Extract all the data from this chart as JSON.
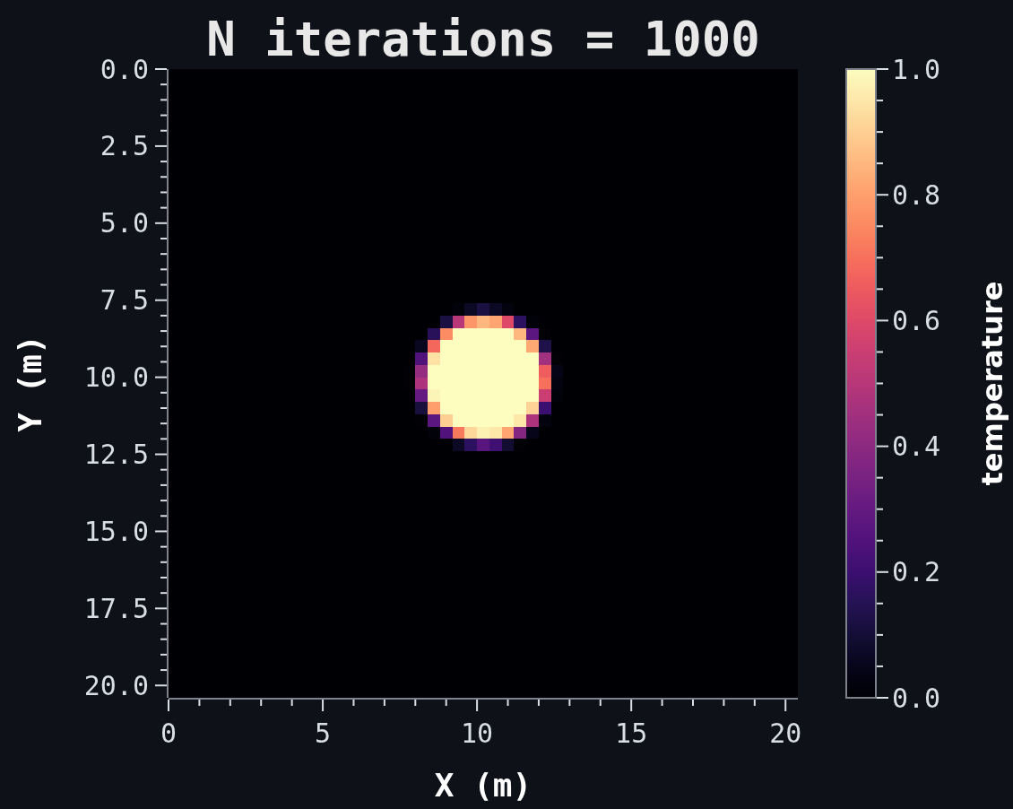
{
  "chart_data": {
    "type": "heatmap",
    "title": "N iterations = 1000",
    "xlabel": "X (m)",
    "ylabel": "Y (m)",
    "clabel": "temperature",
    "x": [
      0.2,
      0.6,
      1,
      1.4,
      1.8,
      2.2,
      2.6,
      3,
      3.4,
      3.8,
      4.2,
      4.6,
      5,
      5.4,
      5.8,
      6.2,
      6.6,
      7,
      7.4,
      7.8,
      8.2,
      8.6,
      9,
      9.4,
      9.8,
      10.2,
      10.6,
      11,
      11.4,
      11.8,
      12.2,
      12.6,
      13,
      13.4,
      13.8,
      14.2,
      14.6,
      15,
      15.4,
      15.8,
      16.2,
      16.6,
      17,
      17.4,
      17.8,
      18.2,
      18.6,
      19,
      19.4,
      19.8,
      20.2
    ],
    "xlim": [
      0,
      20.4
    ],
    "ylim": [
      20.4,
      0
    ],
    "xticks": [
      0,
      {
        "value": 1,
        "label": null
      },
      {
        "value": 2,
        "label": null
      },
      {
        "value": 3,
        "label": null
      },
      {
        "value": 4,
        "label": null
      },
      5,
      {
        "value": 6,
        "label": null
      },
      {
        "value": 7,
        "label": null
      },
      {
        "value": 8,
        "label": null
      },
      {
        "value": 9,
        "label": null
      },
      10,
      {
        "value": 11,
        "label": null
      },
      {
        "value": 12,
        "label": null
      },
      {
        "value": 13,
        "label": null
      },
      {
        "value": 14,
        "label": null
      },
      15,
      {
        "value": 16,
        "label": null
      },
      {
        "value": 17,
        "label": null
      },
      {
        "value": 18,
        "label": null
      },
      {
        "value": 19,
        "label": null
      },
      20
    ],
    "yticks": [
      {
        "value": 0,
        "label": "0.0"
      },
      {
        "value": 0.5,
        "label": null
      },
      {
        "value": 1,
        "label": null
      },
      {
        "value": 1.5,
        "label": null
      },
      {
        "value": 2,
        "label": null
      },
      {
        "value": 2.5,
        "label": "2.5"
      },
      {
        "value": 3,
        "label": null
      },
      {
        "value": 3.5,
        "label": null
      },
      {
        "value": 4,
        "label": null
      },
      {
        "value": 4.5,
        "label": null
      },
      {
        "value": 5,
        "label": "5.0"
      },
      {
        "value": 5.5,
        "label": null
      },
      {
        "value": 6,
        "label": null
      },
      {
        "value": 6.5,
        "label": null
      },
      {
        "value": 7,
        "label": null
      },
      {
        "value": 7.5,
        "label": "7.5"
      },
      {
        "value": 8,
        "label": null
      },
      {
        "value": 8.5,
        "label": null
      },
      {
        "value": 9,
        "label": null
      },
      {
        "value": 9.5,
        "label": null
      },
      {
        "value": 10,
        "label": "10.0"
      },
      {
        "value": 10.5,
        "label": null
      },
      {
        "value": 11,
        "label": null
      },
      {
        "value": 11.5,
        "label": null
      },
      {
        "value": 12,
        "label": null
      },
      {
        "value": 12.5,
        "label": "12.5"
      },
      {
        "value": 13,
        "label": null
      },
      {
        "value": 13.5,
        "label": null
      },
      {
        "value": 14,
        "label": null
      },
      {
        "value": 14.5,
        "label": null
      },
      {
        "value": 15,
        "label": "15.0"
      },
      {
        "value": 15.5,
        "label": null
      },
      {
        "value": 16,
        "label": null
      },
      {
        "value": 16.5,
        "label": null
      },
      {
        "value": 17,
        "label": null
      },
      {
        "value": 17.5,
        "label": "17.5"
      },
      {
        "value": 18,
        "label": null
      },
      {
        "value": 18.5,
        "label": null
      },
      {
        "value": 19,
        "label": null
      },
      {
        "value": 19.5,
        "label": null
      },
      {
        "value": 20,
        "label": "20.0"
      }
    ],
    "clim": [
      0,
      1
    ],
    "cticks": [
      {
        "value": 0,
        "label": "0.0"
      },
      {
        "value": 0.05,
        "label": null
      },
      {
        "value": 0.1,
        "label": null
      },
      {
        "value": 0.15,
        "label": null
      },
      {
        "value": 0.2,
        "label": "0.2"
      },
      {
        "value": 0.25,
        "label": null
      },
      {
        "value": 0.3,
        "label": null
      },
      {
        "value": 0.35,
        "label": null
      },
      {
        "value": 0.4,
        "label": "0.4"
      },
      {
        "value": 0.45,
        "label": null
      },
      {
        "value": 0.5,
        "label": null
      },
      {
        "value": 0.55,
        "label": null
      },
      {
        "value": 0.6,
        "label": "0.6"
      },
      {
        "value": 0.65,
        "label": null
      },
      {
        "value": 0.7,
        "label": null
      },
      {
        "value": 0.75,
        "label": null
      },
      {
        "value": 0.8,
        "label": "0.8"
      },
      {
        "value": 0.85,
        "label": null
      },
      {
        "value": 0.9,
        "label": null
      },
      {
        "value": 0.95,
        "label": null
      },
      {
        "value": 1,
        "label": "1.0"
      }
    ],
    "cells": [
      [
        0,
        0,
        0,
        0,
        0,
        0,
        0,
        0,
        0,
        0,
        0,
        0,
        0,
        0,
        0,
        0,
        0,
        0,
        0,
        0,
        0,
        0,
        0,
        0,
        0,
        0,
        0,
        0,
        0,
        0,
        0,
        0,
        0,
        0,
        0,
        0,
        0,
        0,
        0,
        0,
        0,
        0,
        0,
        0,
        0,
        0,
        0,
        0,
        0,
        0,
        0
      ],
      [
        0,
        0,
        0,
        0,
        0,
        0,
        0,
        0,
        0,
        0,
        0,
        0,
        0,
        0,
        0,
        0,
        0,
        0,
        0,
        0,
        0,
        0,
        0,
        0,
        0,
        0,
        0,
        0,
        0,
        0,
        0,
        0,
        0,
        0,
        0,
        0,
        0,
        0,
        0,
        0,
        0,
        0,
        0,
        0,
        0,
        0,
        0,
        0,
        0,
        0,
        0
      ],
      [
        0,
        0,
        0,
        0,
        0,
        0,
        0,
        0,
        0,
        0,
        0,
        0,
        0,
        0,
        0,
        0,
        0,
        0,
        0,
        0,
        0,
        0,
        0,
        0,
        0,
        0,
        0,
        0,
        0,
        0,
        0,
        0,
        0,
        0,
        0,
        0,
        0,
        0,
        0,
        0,
        0,
        0,
        0,
        0,
        0,
        0,
        0,
        0,
        0,
        0,
        0
      ],
      [
        0,
        0,
        0,
        0,
        0,
        0,
        0,
        0,
        0,
        0,
        0,
        0,
        0,
        0,
        0,
        0,
        0,
        0,
        0,
        0,
        0,
        0,
        0,
        0,
        0,
        0,
        0,
        0,
        0,
        0,
        0,
        0,
        0,
        0,
        0,
        0,
        0,
        0,
        0,
        0,
        0,
        0,
        0,
        0,
        0,
        0,
        0,
        0,
        0,
        0,
        0
      ],
      [
        0,
        0,
        0,
        0,
        0,
        0,
        0,
        0,
        0,
        0,
        0,
        0,
        0,
        0,
        0,
        0,
        0,
        0,
        0,
        0,
        0,
        0,
        0,
        0,
        0,
        0,
        0,
        0,
        0,
        0,
        0,
        0,
        0,
        0,
        0,
        0,
        0,
        0,
        0,
        0,
        0,
        0,
        0,
        0,
        0,
        0,
        0,
        0,
        0,
        0,
        0
      ],
      [
        0,
        0,
        0,
        0,
        0,
        0,
        0,
        0,
        0,
        0,
        0,
        0,
        0,
        0,
        0,
        0,
        0,
        0,
        0,
        0,
        0,
        0,
        0,
        0,
        0,
        0,
        0,
        0,
        0,
        0,
        0,
        0,
        0,
        0,
        0,
        0,
        0,
        0,
        0,
        0,
        0,
        0,
        0,
        0,
        0,
        0,
        0,
        0,
        0,
        0,
        0
      ],
      [
        0,
        0,
        0,
        0,
        0,
        0,
        0,
        0,
        0,
        0,
        0,
        0,
        0,
        0,
        0,
        0,
        0,
        0,
        0,
        0,
        0,
        0,
        0,
        0,
        0,
        0,
        0,
        0,
        0,
        0,
        0,
        0,
        0,
        0,
        0,
        0,
        0,
        0,
        0,
        0,
        0,
        0,
        0,
        0,
        0,
        0,
        0,
        0,
        0,
        0,
        0
      ],
      [
        0,
        0,
        0,
        0,
        0,
        0,
        0,
        0,
        0,
        0,
        0,
        0,
        0,
        0,
        0,
        0,
        0,
        0,
        0,
        0,
        0,
        0,
        0,
        0,
        0,
        0,
        0,
        0,
        0,
        0,
        0,
        0,
        0,
        0,
        0,
        0,
        0,
        0,
        0,
        0,
        0,
        0,
        0,
        0,
        0,
        0,
        0,
        0,
        0,
        0,
        0
      ],
      [
        0,
        0,
        0,
        0,
        0,
        0,
        0,
        0,
        0,
        0,
        0,
        0,
        0,
        0,
        0,
        0,
        0,
        0,
        0,
        0,
        0,
        0,
        0,
        0,
        0,
        0,
        0,
        0,
        0,
        0,
        0,
        0,
        0,
        0,
        0,
        0,
        0,
        0,
        0,
        0,
        0,
        0,
        0,
        0,
        0,
        0,
        0,
        0,
        0,
        0,
        0
      ],
      [
        0,
        0,
        0,
        0,
        0,
        0,
        0,
        0,
        0,
        0,
        0,
        0,
        0,
        0,
        0,
        0,
        0,
        0,
        0,
        0,
        0,
        0,
        0,
        0,
        0,
        0,
        0,
        0,
        0,
        0,
        0,
        0,
        0,
        0,
        0,
        0,
        0,
        0,
        0,
        0,
        0,
        0,
        0,
        0,
        0,
        0,
        0,
        0,
        0,
        0,
        0
      ],
      [
        0,
        0,
        0,
        0,
        0,
        0,
        0,
        0,
        0,
        0,
        0,
        0,
        0,
        0,
        0,
        0,
        0,
        0,
        0,
        0,
        0,
        0,
        0,
        0,
        0,
        0,
        0,
        0,
        0,
        0,
        0,
        0,
        0,
        0,
        0,
        0,
        0,
        0,
        0,
        0,
        0,
        0,
        0,
        0,
        0,
        0,
        0,
        0,
        0,
        0,
        0
      ],
      [
        0,
        0,
        0,
        0,
        0,
        0,
        0,
        0,
        0,
        0,
        0,
        0,
        0,
        0,
        0,
        0,
        0,
        0,
        0,
        0,
        0,
        0,
        0,
        0,
        0,
        0,
        0,
        0,
        0,
        0,
        0,
        0,
        0,
        0,
        0,
        0,
        0,
        0,
        0,
        0,
        0,
        0,
        0,
        0,
        0,
        0,
        0,
        0,
        0,
        0,
        0
      ],
      [
        0,
        0,
        0,
        0,
        0,
        0,
        0,
        0,
        0,
        0,
        0,
        0,
        0,
        0,
        0,
        0,
        0,
        0,
        0,
        0,
        0,
        0,
        0,
        0,
        0,
        0,
        0,
        0,
        0,
        0,
        0,
        0,
        0,
        0,
        0,
        0,
        0,
        0,
        0,
        0,
        0,
        0,
        0,
        0,
        0,
        0,
        0,
        0,
        0,
        0,
        0
      ],
      [
        0,
        0,
        0,
        0,
        0,
        0,
        0,
        0,
        0,
        0,
        0,
        0,
        0,
        0,
        0,
        0,
        0,
        0,
        0,
        0,
        0,
        0,
        0,
        0,
        0,
        0,
        0,
        0,
        0,
        0,
        0,
        0,
        0,
        0,
        0,
        0,
        0,
        0,
        0,
        0,
        0,
        0,
        0,
        0,
        0,
        0,
        0,
        0,
        0,
        0,
        0
      ],
      [
        0,
        0,
        0,
        0,
        0,
        0,
        0,
        0,
        0,
        0,
        0,
        0,
        0,
        0,
        0,
        0,
        0,
        0,
        0,
        0,
        0,
        0,
        0,
        0,
        0,
        0,
        0,
        0,
        0,
        0,
        0,
        0,
        0,
        0,
        0,
        0,
        0,
        0,
        0,
        0,
        0,
        0,
        0,
        0,
        0,
        0,
        0,
        0,
        0,
        0,
        0
      ],
      [
        0,
        0,
        0,
        0,
        0,
        0,
        0,
        0,
        0,
        0,
        0,
        0,
        0,
        0,
        0,
        0,
        0,
        0,
        0,
        0,
        0,
        0,
        0,
        0,
        0,
        0,
        0,
        0,
        0,
        0,
        0,
        0,
        0,
        0,
        0,
        0,
        0,
        0,
        0,
        0,
        0,
        0,
        0,
        0,
        0,
        0,
        0,
        0,
        0,
        0,
        0
      ],
      [
        0,
        0,
        0,
        0,
        0,
        0,
        0,
        0,
        0,
        0,
        0,
        0,
        0,
        0,
        0,
        0,
        0,
        0,
        0,
        0,
        0,
        0,
        0,
        0,
        0,
        0,
        0,
        0,
        0,
        0,
        0,
        0,
        0,
        0,
        0,
        0,
        0,
        0,
        0,
        0,
        0,
        0,
        0,
        0,
        0,
        0,
        0,
        0,
        0,
        0,
        0
      ],
      [
        0,
        0,
        0,
        0,
        0,
        0,
        0,
        0,
        0,
        0,
        0,
        0,
        0,
        0,
        0,
        0,
        0,
        0,
        0,
        0,
        0,
        0,
        0,
        0,
        0,
        0,
        0,
        0,
        0,
        0,
        0,
        0,
        0,
        0,
        0,
        0,
        0,
        0,
        0,
        0,
        0,
        0,
        0,
        0,
        0,
        0,
        0,
        0,
        0,
        0,
        0
      ],
      [
        0,
        0,
        0,
        0,
        0,
        0,
        0,
        0,
        0,
        0,
        0,
        0,
        0,
        0,
        0,
        0,
        0,
        0,
        0,
        0,
        0,
        0,
        0,
        0,
        0,
        0,
        0,
        0,
        0,
        0,
        0,
        0,
        0,
        0,
        0,
        0,
        0,
        0,
        0,
        0,
        0,
        0,
        0,
        0,
        0,
        0,
        0,
        0,
        0,
        0,
        0
      ],
      [
        0,
        0,
        0,
        0,
        0,
        0,
        0,
        0,
        0,
        0,
        0,
        0,
        0,
        0,
        0,
        0,
        0,
        0,
        0,
        0,
        0,
        0,
        0,
        0.02,
        0.07,
        0.12,
        0.07,
        0.03,
        0,
        0,
        0,
        0,
        0,
        0,
        0,
        0,
        0,
        0,
        0,
        0,
        0,
        0,
        0,
        0,
        0,
        0,
        0,
        0,
        0,
        0,
        0
      ],
      [
        0,
        0,
        0,
        0,
        0,
        0,
        0,
        0,
        0,
        0,
        0,
        0,
        0,
        0,
        0,
        0,
        0,
        0,
        0,
        0,
        0,
        0,
        0.12,
        0.5,
        0.78,
        0.85,
        0.81,
        0.6,
        0.17,
        0.02,
        0,
        0,
        0,
        0,
        0,
        0,
        0,
        0,
        0,
        0,
        0,
        0,
        0,
        0,
        0,
        0,
        0,
        0,
        0,
        0,
        0
      ],
      [
        0,
        0,
        0,
        0,
        0,
        0,
        0,
        0,
        0,
        0,
        0,
        0,
        0,
        0,
        0,
        0,
        0,
        0,
        0,
        0,
        0,
        0.16,
        0.76,
        1,
        1,
        1,
        1,
        1,
        0.85,
        0.28,
        0.01,
        0,
        0,
        0,
        0,
        0,
        0,
        0,
        0,
        0,
        0,
        0,
        0,
        0,
        0,
        0,
        0,
        0,
        0,
        0,
        0
      ],
      [
        0,
        0,
        0,
        0,
        0,
        0,
        0,
        0,
        0,
        0,
        0,
        0,
        0,
        0,
        0,
        0,
        0,
        0,
        0,
        0,
        0.06,
        0.68,
        1,
        1,
        1,
        1,
        1,
        1,
        1,
        0.82,
        0.13,
        0,
        0,
        0,
        0,
        0,
        0,
        0,
        0,
        0,
        0,
        0,
        0,
        0,
        0,
        0,
        0,
        0,
        0,
        0,
        0
      ],
      [
        0,
        0,
        0,
        0,
        0,
        0,
        0,
        0,
        0,
        0,
        0,
        0,
        0,
        0,
        0,
        0,
        0,
        0,
        0,
        0,
        0.25,
        0.94,
        1,
        1,
        1,
        1,
        1,
        1,
        1,
        1,
        0.45,
        0.01,
        0,
        0,
        0,
        0,
        0,
        0,
        0,
        0,
        0,
        0,
        0,
        0,
        0,
        0,
        0,
        0,
        0,
        0,
        0
      ],
      [
        0,
        0,
        0,
        0,
        0,
        0,
        0,
        0,
        0,
        0,
        0,
        0,
        0,
        0,
        0,
        0,
        0,
        0,
        0,
        0.01,
        0.42,
        1,
        1,
        1,
        1,
        1,
        1,
        1,
        1,
        1,
        0.66,
        0.04,
        0,
        0,
        0,
        0,
        0,
        0,
        0,
        0,
        0,
        0,
        0,
        0,
        0,
        0,
        0,
        0,
        0,
        0,
        0
      ],
      [
        0,
        0,
        0,
        0,
        0,
        0,
        0,
        0,
        0,
        0,
        0,
        0,
        0,
        0,
        0,
        0,
        0,
        0,
        0,
        0.01,
        0.48,
        1,
        1,
        1,
        1,
        1,
        1,
        1,
        1,
        1,
        0.7,
        0.03,
        0,
        0,
        0,
        0,
        0,
        0,
        0,
        0,
        0,
        0,
        0,
        0,
        0,
        0,
        0,
        0,
        0,
        0,
        0
      ],
      [
        0,
        0,
        0,
        0,
        0,
        0,
        0,
        0,
        0,
        0,
        0,
        0,
        0,
        0,
        0,
        0,
        0,
        0,
        0,
        0,
        0.3,
        0.98,
        1,
        1,
        1,
        1,
        1,
        1,
        1,
        1,
        0.55,
        0.02,
        0,
        0,
        0,
        0,
        0,
        0,
        0,
        0,
        0,
        0,
        0,
        0,
        0,
        0,
        0,
        0,
        0,
        0,
        0
      ],
      [
        0,
        0,
        0,
        0,
        0,
        0,
        0,
        0,
        0,
        0,
        0,
        0,
        0,
        0,
        0,
        0,
        0,
        0,
        0,
        0,
        0.11,
        0.8,
        1,
        1,
        1,
        1,
        1,
        1,
        1,
        0.91,
        0.2,
        0,
        0,
        0,
        0,
        0,
        0,
        0,
        0,
        0,
        0,
        0,
        0,
        0,
        0,
        0,
        0,
        0,
        0,
        0,
        0
      ],
      [
        0,
        0,
        0,
        0,
        0,
        0,
        0,
        0,
        0,
        0,
        0,
        0,
        0,
        0,
        0,
        0,
        0,
        0,
        0,
        0,
        0.01,
        0.28,
        0.9,
        1,
        1,
        1,
        1,
        1,
        0.95,
        0.48,
        0.03,
        0,
        0,
        0,
        0,
        0,
        0,
        0,
        0,
        0,
        0,
        0,
        0,
        0,
        0,
        0,
        0,
        0,
        0,
        0,
        0
      ],
      [
        0,
        0,
        0,
        0,
        0,
        0,
        0,
        0,
        0,
        0,
        0,
        0,
        0,
        0,
        0,
        0,
        0,
        0,
        0,
        0,
        0,
        0.02,
        0.25,
        0.72,
        0.92,
        0.97,
        0.95,
        0.81,
        0.38,
        0.05,
        0,
        0,
        0,
        0,
        0,
        0,
        0,
        0,
        0,
        0,
        0,
        0,
        0,
        0,
        0,
        0,
        0,
        0,
        0,
        0,
        0
      ],
      [
        0,
        0,
        0,
        0,
        0,
        0,
        0,
        0,
        0,
        0,
        0,
        0,
        0,
        0,
        0,
        0,
        0,
        0,
        0,
        0,
        0,
        0,
        0,
        0.07,
        0.17,
        0.27,
        0.21,
        0.09,
        0.01,
        0,
        0,
        0,
        0,
        0,
        0,
        0,
        0,
        0,
        0,
        0,
        0,
        0,
        0,
        0,
        0,
        0,
        0,
        0,
        0,
        0,
        0
      ],
      [
        0,
        0,
        0,
        0,
        0,
        0,
        0,
        0,
        0,
        0,
        0,
        0,
        0,
        0,
        0,
        0,
        0,
        0,
        0,
        0,
        0,
        0,
        0,
        0,
        0,
        0,
        0,
        0,
        0,
        0,
        0,
        0,
        0,
        0,
        0,
        0,
        0,
        0,
        0,
        0,
        0,
        0,
        0,
        0,
        0,
        0,
        0,
        0,
        0,
        0,
        0
      ],
      [
        0,
        0,
        0,
        0,
        0,
        0,
        0,
        0,
        0,
        0,
        0,
        0,
        0,
        0,
        0,
        0,
        0,
        0,
        0,
        0,
        0,
        0,
        0,
        0,
        0,
        0,
        0,
        0,
        0,
        0,
        0,
        0,
        0,
        0,
        0,
        0,
        0,
        0,
        0,
        0,
        0,
        0,
        0,
        0,
        0,
        0,
        0,
        0,
        0,
        0,
        0
      ],
      [
        0,
        0,
        0,
        0,
        0,
        0,
        0,
        0,
        0,
        0,
        0,
        0,
        0,
        0,
        0,
        0,
        0,
        0,
        0,
        0,
        0,
        0,
        0,
        0,
        0,
        0,
        0,
        0,
        0,
        0,
        0,
        0,
        0,
        0,
        0,
        0,
        0,
        0,
        0,
        0,
        0,
        0,
        0,
        0,
        0,
        0,
        0,
        0,
        0,
        0,
        0
      ],
      [
        0,
        0,
        0,
        0,
        0,
        0,
        0,
        0,
        0,
        0,
        0,
        0,
        0,
        0,
        0,
        0,
        0,
        0,
        0,
        0,
        0,
        0,
        0,
        0,
        0,
        0,
        0,
        0,
        0,
        0,
        0,
        0,
        0,
        0,
        0,
        0,
        0,
        0,
        0,
        0,
        0,
        0,
        0,
        0,
        0,
        0,
        0,
        0,
        0,
        0,
        0
      ],
      [
        0,
        0,
        0,
        0,
        0,
        0,
        0,
        0,
        0,
        0,
        0,
        0,
        0,
        0,
        0,
        0,
        0,
        0,
        0,
        0,
        0,
        0,
        0,
        0,
        0,
        0,
        0,
        0,
        0,
        0,
        0,
        0,
        0,
        0,
        0,
        0,
        0,
        0,
        0,
        0,
        0,
        0,
        0,
        0,
        0,
        0,
        0,
        0,
        0,
        0,
        0
      ],
      [
        0,
        0,
        0,
        0,
        0,
        0,
        0,
        0,
        0,
        0,
        0,
        0,
        0,
        0,
        0,
        0,
        0,
        0,
        0,
        0,
        0,
        0,
        0,
        0,
        0,
        0,
        0,
        0,
        0,
        0,
        0,
        0,
        0,
        0,
        0,
        0,
        0,
        0,
        0,
        0,
        0,
        0,
        0,
        0,
        0,
        0,
        0,
        0,
        0,
        0,
        0
      ],
      [
        0,
        0,
        0,
        0,
        0,
        0,
        0,
        0,
        0,
        0,
        0,
        0,
        0,
        0,
        0,
        0,
        0,
        0,
        0,
        0,
        0,
        0,
        0,
        0,
        0,
        0,
        0,
        0,
        0,
        0,
        0,
        0,
        0,
        0,
        0,
        0,
        0,
        0,
        0,
        0,
        0,
        0,
        0,
        0,
        0,
        0,
        0,
        0,
        0,
        0,
        0
      ],
      [
        0,
        0,
        0,
        0,
        0,
        0,
        0,
        0,
        0,
        0,
        0,
        0,
        0,
        0,
        0,
        0,
        0,
        0,
        0,
        0,
        0,
        0,
        0,
        0,
        0,
        0,
        0,
        0,
        0,
        0,
        0,
        0,
        0,
        0,
        0,
        0,
        0,
        0,
        0,
        0,
        0,
        0,
        0,
        0,
        0,
        0,
        0,
        0,
        0,
        0,
        0
      ],
      [
        0,
        0,
        0,
        0,
        0,
        0,
        0,
        0,
        0,
        0,
        0,
        0,
        0,
        0,
        0,
        0,
        0,
        0,
        0,
        0,
        0,
        0,
        0,
        0,
        0,
        0,
        0,
        0,
        0,
        0,
        0,
        0,
        0,
        0,
        0,
        0,
        0,
        0,
        0,
        0,
        0,
        0,
        0,
        0,
        0,
        0,
        0,
        0,
        0,
        0,
        0
      ],
      [
        0,
        0,
        0,
        0,
        0,
        0,
        0,
        0,
        0,
        0,
        0,
        0,
        0,
        0,
        0,
        0,
        0,
        0,
        0,
        0,
        0,
        0,
        0,
        0,
        0,
        0,
        0,
        0,
        0,
        0,
        0,
        0,
        0,
        0,
        0,
        0,
        0,
        0,
        0,
        0,
        0,
        0,
        0,
        0,
        0,
        0,
        0,
        0,
        0,
        0,
        0
      ],
      [
        0,
        0,
        0,
        0,
        0,
        0,
        0,
        0,
        0,
        0,
        0,
        0,
        0,
        0,
        0,
        0,
        0,
        0,
        0,
        0,
        0,
        0,
        0,
        0,
        0,
        0,
        0,
        0,
        0,
        0,
        0,
        0,
        0,
        0,
        0,
        0,
        0,
        0,
        0,
        0,
        0,
        0,
        0,
        0,
        0,
        0,
        0,
        0,
        0,
        0,
        0
      ],
      [
        0,
        0,
        0,
        0,
        0,
        0,
        0,
        0,
        0,
        0,
        0,
        0,
        0,
        0,
        0,
        0,
        0,
        0,
        0,
        0,
        0,
        0,
        0,
        0,
        0,
        0,
        0,
        0,
        0,
        0,
        0,
        0,
        0,
        0,
        0,
        0,
        0,
        0,
        0,
        0,
        0,
        0,
        0,
        0,
        0,
        0,
        0,
        0,
        0,
        0,
        0
      ],
      [
        0,
        0,
        0,
        0,
        0,
        0,
        0,
        0,
        0,
        0,
        0,
        0,
        0,
        0,
        0,
        0,
        0,
        0,
        0,
        0,
        0,
        0,
        0,
        0,
        0,
        0,
        0,
        0,
        0,
        0,
        0,
        0,
        0,
        0,
        0,
        0,
        0,
        0,
        0,
        0,
        0,
        0,
        0,
        0,
        0,
        0,
        0,
        0,
        0,
        0,
        0
      ],
      [
        0,
        0,
        0,
        0,
        0,
        0,
        0,
        0,
        0,
        0,
        0,
        0,
        0,
        0,
        0,
        0,
        0,
        0,
        0,
        0,
        0,
        0,
        0,
        0,
        0,
        0,
        0,
        0,
        0,
        0,
        0,
        0,
        0,
        0,
        0,
        0,
        0,
        0,
        0,
        0,
        0,
        0,
        0,
        0,
        0,
        0,
        0,
        0,
        0,
        0,
        0
      ],
      [
        0,
        0,
        0,
        0,
        0,
        0,
        0,
        0,
        0,
        0,
        0,
        0,
        0,
        0,
        0,
        0,
        0,
        0,
        0,
        0,
        0,
        0,
        0,
        0,
        0,
        0,
        0,
        0,
        0,
        0,
        0,
        0,
        0,
        0,
        0,
        0,
        0,
        0,
        0,
        0,
        0,
        0,
        0,
        0,
        0,
        0,
        0,
        0,
        0,
        0,
        0
      ],
      [
        0,
        0,
        0,
        0,
        0,
        0,
        0,
        0,
        0,
        0,
        0,
        0,
        0,
        0,
        0,
        0,
        0,
        0,
        0,
        0,
        0,
        0,
        0,
        0,
        0,
        0,
        0,
        0,
        0,
        0,
        0,
        0,
        0,
        0,
        0,
        0,
        0,
        0,
        0,
        0,
        0,
        0,
        0,
        0,
        0,
        0,
        0,
        0,
        0,
        0,
        0
      ],
      [
        0,
        0,
        0,
        0,
        0,
        0,
        0,
        0,
        0,
        0,
        0,
        0,
        0,
        0,
        0,
        0,
        0,
        0,
        0,
        0,
        0,
        0,
        0,
        0,
        0,
        0,
        0,
        0,
        0,
        0,
        0,
        0,
        0,
        0,
        0,
        0,
        0,
        0,
        0,
        0,
        0,
        0,
        0,
        0,
        0,
        0,
        0,
        0,
        0,
        0,
        0
      ],
      [
        0,
        0,
        0,
        0,
        0,
        0,
        0,
        0,
        0,
        0,
        0,
        0,
        0,
        0,
        0,
        0,
        0,
        0,
        0,
        0,
        0,
        0,
        0,
        0,
        0,
        0,
        0,
        0,
        0,
        0,
        0,
        0,
        0,
        0,
        0,
        0,
        0,
        0,
        0,
        0,
        0,
        0,
        0,
        0,
        0,
        0,
        0,
        0,
        0,
        0,
        0
      ],
      [
        0,
        0,
        0,
        0,
        0,
        0,
        0,
        0,
        0,
        0,
        0,
        0,
        0,
        0,
        0,
        0,
        0,
        0,
        0,
        0,
        0,
        0,
        0,
        0,
        0,
        0,
        0,
        0,
        0,
        0,
        0,
        0,
        0,
        0,
        0,
        0,
        0,
        0,
        0,
        0,
        0,
        0,
        0,
        0,
        0,
        0,
        0,
        0,
        0,
        0,
        0
      ],
      [
        0,
        0,
        0,
        0,
        0,
        0,
        0,
        0,
        0,
        0,
        0,
        0,
        0,
        0,
        0,
        0,
        0,
        0,
        0,
        0,
        0,
        0,
        0,
        0,
        0,
        0,
        0,
        0,
        0,
        0,
        0,
        0,
        0,
        0,
        0,
        0,
        0,
        0,
        0,
        0,
        0,
        0,
        0,
        0,
        0,
        0,
        0,
        0,
        0,
        0,
        0
      ]
    ]
  }
}
